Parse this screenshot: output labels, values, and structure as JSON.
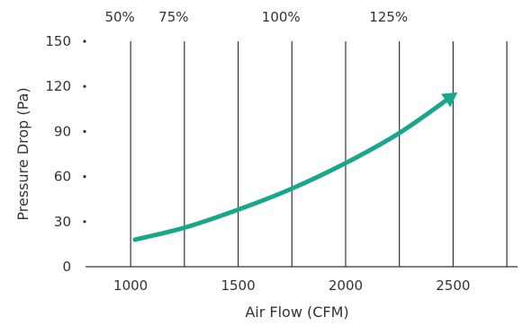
{
  "chart_data": {
    "type": "line",
    "xlabel": "Air Flow (CFM)",
    "ylabel": "Pressure Drop (Pa)",
    "xlim": [
      790,
      2800
    ],
    "ylim": [
      0,
      150
    ],
    "x_ticks": [
      1000,
      1500,
      2000,
      2500
    ],
    "y_ticks": [
      0,
      30,
      60,
      90,
      120,
      150
    ],
    "top_axis_labels": [
      {
        "label": "50%",
        "x": 1000
      },
      {
        "label": "75%",
        "x": 1250
      },
      {
        "label": "100%",
        "x": 1750
      },
      {
        "label": "125%",
        "x": 2250
      }
    ],
    "vertical_gridlines_x": [
      1000,
      1250,
      1500,
      1750,
      2000,
      2250,
      2500,
      2750
    ],
    "grid": "vertical",
    "series": [
      {
        "color": "#1aa68a",
        "marker_end": "arrow",
        "x": [
          1020,
          1250,
          1500,
          1750,
          2000,
          2250,
          2500
        ],
        "y": [
          18,
          26,
          38,
          52,
          69,
          89,
          114
        ]
      }
    ]
  }
}
